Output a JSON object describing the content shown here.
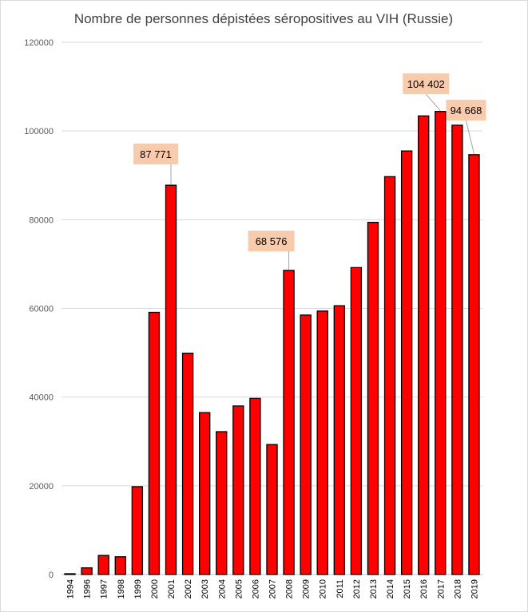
{
  "chart_data": {
    "type": "bar",
    "title": "Nombre de personnes dépistées séropositives au VIH (Russie)",
    "xlabel": "",
    "ylabel": "",
    "ylim": [
      0,
      120000
    ],
    "yticks": [
      0,
      20000,
      40000,
      60000,
      80000,
      100000,
      120000
    ],
    "ytick_labels": [
      "0",
      "20000",
      "40000",
      "60000",
      "80000",
      "100000",
      "120000"
    ],
    "grid": true,
    "colors": {
      "bar_fill": "#ff0000",
      "bar_stroke": "#000000",
      "label_box": "#f8cbad"
    },
    "categories": [
      "1994",
      "1996",
      "1997",
      "1998",
      "1999",
      "2000",
      "2001",
      "2002",
      "2003",
      "2004",
      "2005",
      "2006",
      "2007",
      "2008",
      "2009",
      "2010",
      "2011",
      "2012",
      "2013",
      "2014",
      "2015",
      "2016",
      "2017",
      "2018",
      "2019"
    ],
    "values": [
      160,
      1500,
      4300,
      4000,
      19800,
      59100,
      87771,
      49900,
      36500,
      32200,
      38000,
      39700,
      29300,
      68576,
      58500,
      59400,
      60600,
      69200,
      79400,
      89700,
      95500,
      103400,
      104402,
      101300,
      94668
    ],
    "annotations": [
      {
        "category": "2001",
        "text": "87 771"
      },
      {
        "category": "2008",
        "text": "68 576"
      },
      {
        "category": "2017",
        "text": "104 402"
      },
      {
        "category": "2019",
        "text": "94 668"
      }
    ]
  }
}
